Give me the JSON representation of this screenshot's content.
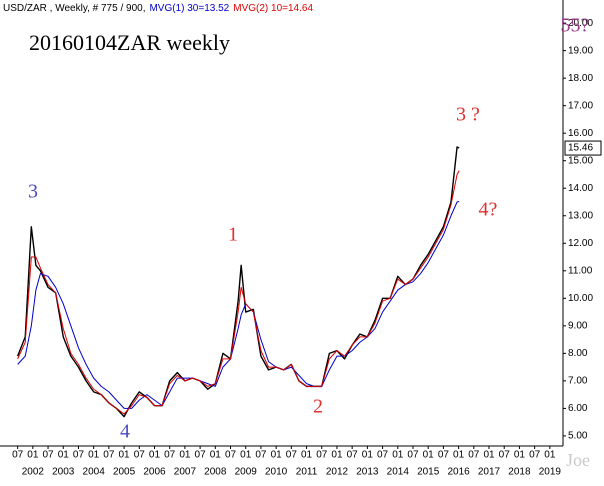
{
  "chart_data": {
    "type": "line",
    "title": "20160104ZAR weekly",
    "x": [
      2001.5,
      2001.75,
      2001.95,
      2002.1,
      2002.25,
      2002.5,
      2002.75,
      2003.0,
      2003.25,
      2003.5,
      2003.75,
      2004.0,
      2004.25,
      2004.5,
      2004.75,
      2005.0,
      2005.25,
      2005.5,
      2005.75,
      2006.0,
      2006.25,
      2006.5,
      2006.75,
      2007.0,
      2007.25,
      2007.5,
      2007.75,
      2008.0,
      2008.25,
      2008.5,
      2008.75,
      2008.85,
      2009.0,
      2009.25,
      2009.5,
      2009.75,
      2010.0,
      2010.25,
      2010.5,
      2010.75,
      2011.0,
      2011.25,
      2011.5,
      2011.75,
      2012.0,
      2012.25,
      2012.5,
      2012.75,
      2013.0,
      2013.25,
      2013.5,
      2013.75,
      2014.0,
      2014.25,
      2014.5,
      2014.75,
      2015.0,
      2015.25,
      2015.5,
      2015.75,
      2015.95,
      2016.02
    ],
    "series": [
      {
        "name": "USD/ZAR , Weekly, # 775 / 900,",
        "color": "#000000",
        "values": [
          7.9,
          8.6,
          12.6,
          11.2,
          11.0,
          10.4,
          10.2,
          8.6,
          7.9,
          7.5,
          7.0,
          6.6,
          6.5,
          6.2,
          6.0,
          5.7,
          6.2,
          6.6,
          6.4,
          6.1,
          6.1,
          7.0,
          7.3,
          7.0,
          7.1,
          7.0,
          6.7,
          6.9,
          8.0,
          7.8,
          9.9,
          11.2,
          9.5,
          9.6,
          7.9,
          7.4,
          7.5,
          7.4,
          7.6,
          7.0,
          6.8,
          6.8,
          6.8,
          8.0,
          8.1,
          7.8,
          8.3,
          8.7,
          8.6,
          9.2,
          10.0,
          10.0,
          10.8,
          10.5,
          10.7,
          11.2,
          11.6,
          12.1,
          12.6,
          13.5,
          15.5,
          15.46
        ]
      },
      {
        "name": "MVG(1) 30=13.52",
        "color": "#0000cc",
        "values": [
          7.6,
          7.9,
          9.0,
          10.3,
          10.9,
          10.8,
          10.4,
          9.8,
          9.0,
          8.2,
          7.6,
          7.1,
          6.8,
          6.6,
          6.3,
          6.0,
          6.0,
          6.3,
          6.5,
          6.3,
          6.1,
          6.6,
          7.1,
          7.1,
          7.1,
          7.0,
          6.9,
          6.8,
          7.5,
          7.8,
          8.9,
          9.4,
          9.8,
          9.5,
          8.5,
          7.7,
          7.5,
          7.4,
          7.5,
          7.2,
          6.9,
          6.8,
          6.8,
          7.4,
          7.9,
          7.9,
          8.1,
          8.4,
          8.6,
          8.9,
          9.5,
          9.9,
          10.3,
          10.5,
          10.6,
          10.9,
          11.3,
          11.8,
          12.3,
          13.0,
          13.5,
          13.52
        ]
      },
      {
        "name": "MVG(2) 10=14.64",
        "color": "#dd0000",
        "values": [
          7.8,
          8.4,
          11.5,
          11.5,
          11.1,
          10.5,
          10.2,
          8.9,
          8.0,
          7.6,
          7.1,
          6.7,
          6.5,
          6.2,
          6.0,
          5.8,
          6.1,
          6.5,
          6.4,
          6.1,
          6.1,
          6.9,
          7.2,
          7.0,
          7.1,
          7.0,
          6.8,
          6.9,
          7.8,
          7.8,
          9.5,
          10.4,
          9.8,
          9.5,
          8.1,
          7.5,
          7.5,
          7.4,
          7.6,
          7.0,
          6.8,
          6.8,
          6.8,
          7.8,
          8.1,
          7.9,
          8.3,
          8.6,
          8.6,
          9.1,
          9.9,
          10.0,
          10.7,
          10.5,
          10.7,
          11.1,
          11.5,
          12.0,
          12.5,
          13.4,
          14.5,
          14.64
        ]
      }
    ],
    "xlim": [
      2000.92,
      2019.4
    ],
    "xticks": [
      {
        "value": 2001.5,
        "label": "07"
      },
      {
        "value": 2002,
        "label": "01"
      },
      {
        "value": 2002.5,
        "label": "07"
      },
      {
        "value": 2003,
        "label": "01"
      },
      {
        "value": 2003.5,
        "label": "07"
      },
      {
        "value": 2004,
        "label": "01"
      },
      {
        "value": 2004.5,
        "label": "07"
      },
      {
        "value": 2005,
        "label": "01"
      },
      {
        "value": 2005.5,
        "label": "07"
      },
      {
        "value": 2006,
        "label": "01"
      },
      {
        "value": 2006.5,
        "label": "07"
      },
      {
        "value": 2007,
        "label": "01"
      },
      {
        "value": 2007.5,
        "label": "07"
      },
      {
        "value": 2008,
        "label": "01"
      },
      {
        "value": 2008.5,
        "label": "07"
      },
      {
        "value": 2009,
        "label": "01"
      },
      {
        "value": 2009.5,
        "label": "07"
      },
      {
        "value": 2010,
        "label": "01"
      },
      {
        "value": 2010.5,
        "label": "07"
      },
      {
        "value": 2011,
        "label": "01"
      },
      {
        "value": 2011.5,
        "label": "07"
      },
      {
        "value": 2012,
        "label": "01"
      },
      {
        "value": 2012.5,
        "label": "07"
      },
      {
        "value": 2013,
        "label": "01"
      },
      {
        "value": 2013.5,
        "label": "07"
      },
      {
        "value": 2014,
        "label": "01"
      },
      {
        "value": 2014.5,
        "label": "07"
      },
      {
        "value": 2015,
        "label": "01"
      },
      {
        "value": 2015.5,
        "label": "07"
      },
      {
        "value": 2016,
        "label": "01"
      },
      {
        "value": 2016.5,
        "label": "07"
      },
      {
        "value": 2017,
        "label": "01"
      },
      {
        "value": 2017.5,
        "label": "07"
      },
      {
        "value": 2018,
        "label": "01"
      },
      {
        "value": 2018.5,
        "label": "07"
      },
      {
        "value": 2019,
        "label": "01"
      }
    ],
    "year_labels": [
      2002,
      2003,
      2004,
      2005,
      2006,
      2007,
      2008,
      2009,
      2010,
      2011,
      2012,
      2013,
      2014,
      2015,
      2016,
      2017,
      2018,
      2019
    ],
    "ylim": [
      4.67,
      20.84
    ],
    "yticks": [
      {
        "value": 5,
        "label": "5.00"
      },
      {
        "value": 6,
        "label": "6.00"
      },
      {
        "value": 7,
        "label": "7.00"
      },
      {
        "value": 8,
        "label": "8.00"
      },
      {
        "value": 9,
        "label": "9.00"
      },
      {
        "value": 10,
        "label": "10.00"
      },
      {
        "value": 11,
        "label": "11.00"
      },
      {
        "value": 12,
        "label": "12.00"
      },
      {
        "value": 13,
        "label": "13.00"
      },
      {
        "value": 14,
        "label": "14.00"
      },
      {
        "value": 15,
        "label": "15.00"
      },
      {
        "value": 16,
        "label": "16.00"
      },
      {
        "value": 17,
        "label": "17.00"
      },
      {
        "value": 18,
        "label": "18.00"
      },
      {
        "value": 19,
        "label": "19.00"
      },
      {
        "value": 20,
        "label": "20.00"
      }
    ],
    "last_price": {
      "value": 15.46,
      "label": "15.46"
    },
    "annotations": [
      {
        "text": "3",
        "color": "#4a4ac0"
      },
      {
        "text": "4",
        "color": "#4a4ac0"
      },
      {
        "text": "1",
        "color": "#e03030"
      },
      {
        "text": "2",
        "color": "#e03030"
      },
      {
        "text": "3 ?",
        "color": "#e03030"
      },
      {
        "text": "4?",
        "color": "#e03030"
      },
      {
        "text": "55?",
        "color": "#9a3a8a"
      }
    ],
    "watermark": "Joe",
    "grid": false
  }
}
